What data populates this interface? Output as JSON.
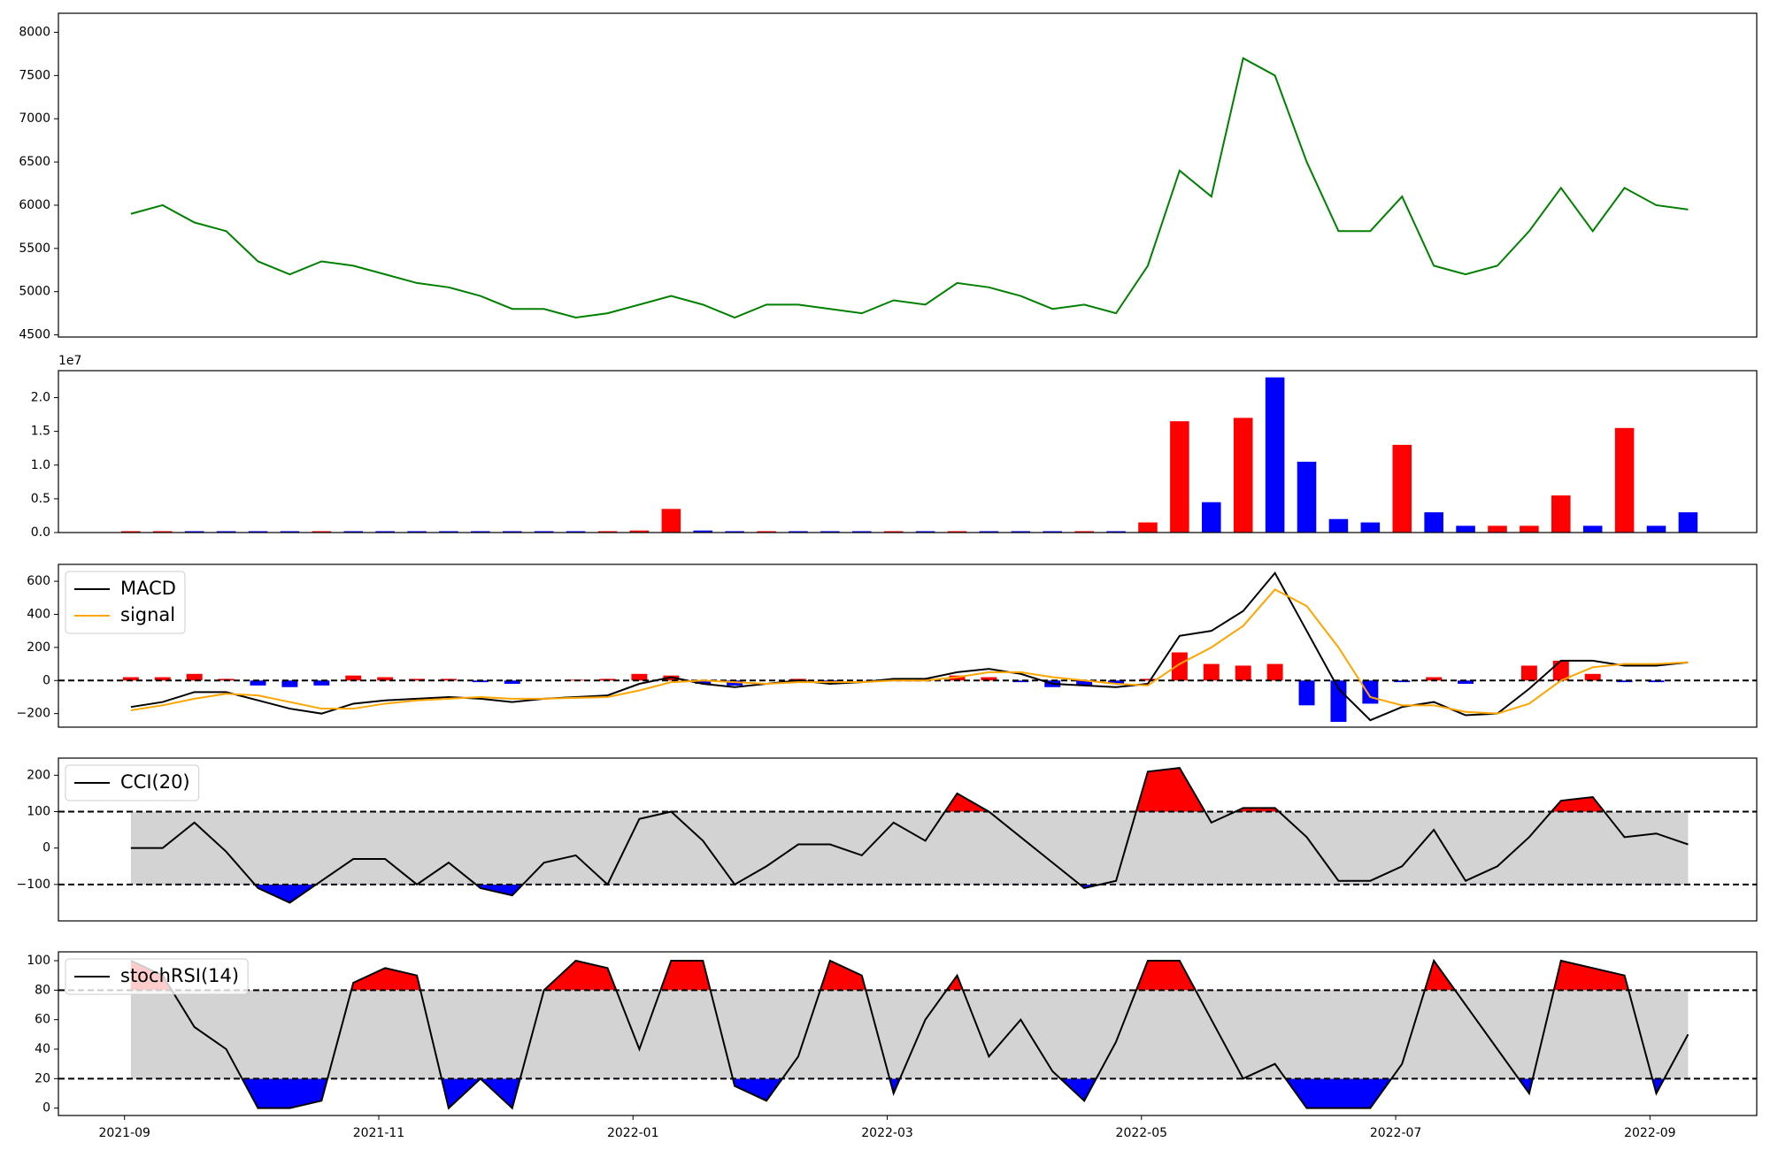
{
  "chart_data": [
    {
      "type": "line",
      "x": [
        0.05,
        0.3,
        0.55,
        0.8,
        1.05,
        1.3,
        1.55,
        1.8,
        2.05,
        2.3,
        2.55,
        2.8,
        3.05,
        3.3,
        3.55,
        3.8,
        4.05,
        4.3,
        4.55,
        4.8,
        5.05,
        5.3,
        5.55,
        5.8,
        6.05,
        6.3,
        6.55,
        6.8,
        7.05,
        7.3,
        7.55,
        7.8,
        8.05,
        8.3,
        8.55,
        8.8,
        9.05,
        9.3,
        9.55,
        9.8,
        10.05,
        10.3,
        10.55,
        10.8,
        11.05,
        11.3,
        11.55,
        11.8,
        12.05,
        12.3
      ],
      "xlim": [
        -0.52,
        12.84
      ],
      "ylim": [
        4475,
        8220
      ],
      "yticks": [
        4500,
        5000,
        5500,
        6000,
        6500,
        7000,
        7500,
        8000
      ],
      "series": [
        {
          "color": "green",
          "values": [
            5900,
            6000,
            5800,
            5700,
            5350,
            5200,
            5350,
            5300,
            5200,
            5100,
            5050,
            4950,
            4800,
            4800,
            4700,
            4750,
            4850,
            4950,
            4850,
            4700,
            4850,
            4850,
            4800,
            4750,
            4900,
            4850,
            5100,
            5050,
            4950,
            4800,
            4850,
            4750,
            5300,
            6400,
            6100,
            7700,
            7500,
            6500,
            5700,
            5700,
            6100,
            5300,
            5200,
            5300,
            5700,
            6200,
            5700,
            6200,
            6000,
            5950
          ]
        }
      ]
    },
    {
      "type": "bar",
      "offset_label": "1e7",
      "ylim": [
        0,
        2.4
      ],
      "yticks": [
        {
          "value": 0,
          "label": "0.0"
        },
        0.5,
        {
          "value": 1,
          "label": "1.0"
        },
        1.5,
        {
          "value": 2,
          "label": "2.0"
        }
      ],
      "values": [
        0.02,
        0.02,
        0.02,
        0.02,
        0.02,
        0.02,
        0.02,
        0.02,
        0.02,
        0.02,
        0.02,
        0.02,
        0.02,
        0.02,
        0.02,
        0.02,
        0.03,
        0.35,
        0.03,
        0.02,
        0.02,
        0.02,
        0.02,
        0.02,
        0.02,
        0.02,
        0.02,
        0.02,
        0.02,
        0.02,
        0.02,
        0.02,
        0.15,
        1.65,
        0.45,
        1.7,
        2.3,
        1.05,
        0.2,
        0.15,
        1.3,
        0.3,
        0.1,
        0.1,
        0.1,
        0.55,
        0.1,
        1.55,
        0.1,
        0.3
      ],
      "colors": [
        "red",
        "red",
        "blue",
        "blue",
        "blue",
        "blue",
        "red",
        "blue",
        "blue",
        "blue",
        "blue",
        "blue",
        "blue",
        "blue",
        "blue",
        "red",
        "red",
        "red",
        "blue",
        "blue",
        "red",
        "blue",
        "blue",
        "blue",
        "red",
        "blue",
        "red",
        "blue",
        "blue",
        "blue",
        "red",
        "blue",
        "red",
        "red",
        "blue",
        "red",
        "blue",
        "blue",
        "blue",
        "blue",
        "red",
        "blue",
        "blue",
        "red",
        "red",
        "red",
        "blue",
        "red",
        "blue",
        "blue"
      ]
    },
    {
      "type": "macd",
      "legend": "upper left",
      "ylim": [
        -282,
        702
      ],
      "yticks": [
        {
          "value": -200,
          "label": "−200"
        },
        0,
        200,
        400,
        600
      ],
      "hlines": [
        0
      ],
      "series": [
        {
          "name": "MACD",
          "color": "#000000",
          "values": [
            -160,
            -130,
            -70,
            -70,
            -120,
            -170,
            -200,
            -140,
            -120,
            -110,
            -100,
            -110,
            -130,
            -110,
            -100,
            -90,
            -20,
            20,
            -20,
            -40,
            -20,
            0,
            -20,
            -10,
            10,
            10,
            50,
            70,
            40,
            -20,
            -30,
            -40,
            -20,
            270,
            300,
            420,
            650,
            300,
            -50,
            -240,
            -160,
            -130,
            -210,
            -200,
            -50,
            120,
            120,
            90,
            90,
            110
          ]
        },
        {
          "name": "signal",
          "color": "orange",
          "values": [
            -180,
            -150,
            -110,
            -80,
            -90,
            -130,
            -170,
            -170,
            -140,
            -120,
            -110,
            -100,
            -110,
            -110,
            -105,
            -100,
            -60,
            -10,
            0,
            -10,
            -20,
            -10,
            -10,
            -10,
            0,
            0,
            20,
            50,
            50,
            20,
            0,
            -20,
            -30,
            100,
            200,
            330,
            550,
            450,
            200,
            -100,
            -150,
            -150,
            -190,
            -200,
            -140,
            0,
            80,
            100,
            100,
            110
          ]
        }
      ],
      "histogram": {
        "pos_color": "red",
        "neg_color": "blue",
        "values": [
          20,
          20,
          40,
          10,
          -30,
          -40,
          -30,
          30,
          20,
          10,
          10,
          -10,
          -20,
          0,
          5,
          10,
          40,
          30,
          -20,
          -30,
          0,
          10,
          -10,
          0,
          10,
          10,
          30,
          20,
          -10,
          -40,
          -30,
          -20,
          10,
          170,
          100,
          90,
          100,
          -150,
          -250,
          -140,
          -10,
          20,
          -20,
          0,
          90,
          120,
          40,
          -10,
          -10,
          0
        ]
      }
    },
    {
      "type": "oscillator",
      "legend": "upper left",
      "ylim": [
        -200,
        247
      ],
      "yticks": [
        {
          "value": -100,
          "label": "−100"
        },
        0,
        100,
        200
      ],
      "hlines": [
        100,
        -100
      ],
      "band_color": "lightgray",
      "upper_color": "red",
      "lower_color": "blue",
      "series": [
        {
          "name": "CCI(20)",
          "color": "#000000",
          "values": [
            0,
            0,
            70,
            -10,
            -110,
            -150,
            -90,
            -30,
            -30,
            -100,
            -40,
            -110,
            -130,
            -40,
            -20,
            -100,
            80,
            100,
            20,
            -100,
            -50,
            10,
            10,
            -20,
            70,
            20,
            150,
            100,
            30,
            -40,
            -110,
            -90,
            210,
            220,
            70,
            110,
            110,
            30,
            -90,
            -90,
            -50,
            50,
            -90,
            -50,
            30,
            130,
            140,
            30,
            40,
            10
          ]
        }
      ]
    },
    {
      "type": "oscillator",
      "legend": "upper left",
      "ylim": [
        -5,
        106
      ],
      "yticks": [
        0,
        20,
        40,
        60,
        80,
        100
      ],
      "xticks": [
        {
          "value": 0,
          "label": "2021-09"
        },
        {
          "value": 2,
          "label": "2021-11"
        },
        {
          "value": 4,
          "label": "2022-01"
        },
        {
          "value": 6,
          "label": "2022-03"
        },
        {
          "value": 8,
          "label": "2022-05"
        },
        {
          "value": 10,
          "label": "2022-07"
        },
        {
          "value": 12,
          "label": "2022-09"
        }
      ],
      "hlines": [
        80,
        20
      ],
      "band_color": "lightgray",
      "upper_color": "red",
      "lower_color": "blue",
      "series": [
        {
          "name": "stochRSI(14)",
          "color": "#000000",
          "values": [
            100,
            90,
            55,
            40,
            0,
            0,
            5,
            85,
            95,
            90,
            0,
            20,
            0,
            80,
            100,
            95,
            40,
            100,
            100,
            15,
            5,
            35,
            100,
            90,
            10,
            60,
            90,
            35,
            60,
            25,
            5,
            45,
            100,
            100,
            60,
            20,
            30,
            0,
            0,
            0,
            30,
            100,
            70,
            40,
            10,
            100,
            95,
            90,
            10,
            50
          ]
        }
      ]
    }
  ]
}
